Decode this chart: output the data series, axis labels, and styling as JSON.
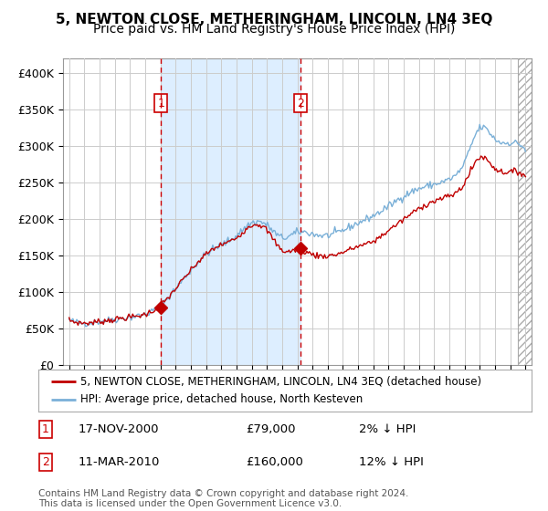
{
  "title": "5, NEWTON CLOSE, METHERINGHAM, LINCOLN, LN4 3EQ",
  "subtitle": "Price paid vs. HM Land Registry's House Price Index (HPI)",
  "ylabel_ticks": [
    "£0",
    "£50K",
    "£100K",
    "£150K",
    "£200K",
    "£250K",
    "£300K",
    "£350K",
    "£400K"
  ],
  "ytick_values": [
    0,
    50000,
    100000,
    150000,
    200000,
    250000,
    300000,
    350000,
    400000
  ],
  "ylim": [
    0,
    420000
  ],
  "xlim_start": 1994.6,
  "xlim_end": 2025.4,
  "hpi_color": "#7ab0d8",
  "price_color": "#c00000",
  "vline_color": "#cc0000",
  "shade_color": "#ddeeff",
  "transaction1": {
    "date_num": 2001.05,
    "price": 79000,
    "label": "1"
  },
  "transaction2": {
    "date_num": 2010.19,
    "price": 160000,
    "label": "2"
  },
  "legend_line1": "5, NEWTON CLOSE, METHERINGHAM, LINCOLN, LN4 3EQ (detached house)",
  "legend_line2": "HPI: Average price, detached house, North Kesteven",
  "table_row1": [
    "1",
    "17-NOV-2000",
    "£79,000",
    "2% ↓ HPI"
  ],
  "table_row2": [
    "2",
    "11-MAR-2010",
    "£160,000",
    "12% ↓ HPI"
  ],
  "footnote": "Contains HM Land Registry data © Crown copyright and database right 2024.\nThis data is licensed under the Open Government Licence v3.0.",
  "title_fontsize": 11,
  "subtitle_fontsize": 10,
  "tick_fontsize": 9,
  "background_color": "#ffffff",
  "hpi_anchor_years": [
    1995,
    1996,
    1997,
    1998,
    1999,
    2000,
    2001,
    2002,
    2003,
    2004,
    2005,
    2006,
    2007,
    2008,
    2009,
    2010,
    2011,
    2012,
    2013,
    2014,
    2015,
    2016,
    2017,
    2018,
    2019,
    2020,
    2021,
    2022,
    2023,
    2024,
    2025
  ],
  "hpi_anchor_prices": [
    62000,
    58000,
    60000,
    63000,
    66000,
    70000,
    82000,
    105000,
    130000,
    152000,
    165000,
    178000,
    195000,
    192000,
    175000,
    182000,
    180000,
    178000,
    185000,
    195000,
    205000,
    218000,
    232000,
    242000,
    248000,
    255000,
    278000,
    325000,
    310000,
    305000,
    295000
  ],
  "price_anchor_years": [
    1995,
    1996,
    1997,
    1998,
    1999,
    2000,
    2001,
    2002,
    2003,
    2004,
    2005,
    2006,
    2007,
    2008,
    2009,
    2010,
    2011,
    2012,
    2013,
    2014,
    2015,
    2016,
    2017,
    2018,
    2019,
    2020,
    2021,
    2022,
    2023,
    2024,
    2025
  ],
  "price_anchor_prices": [
    62000,
    58000,
    60000,
    63000,
    66000,
    70000,
    82000,
    105000,
    130000,
    152000,
    165000,
    175000,
    192000,
    185000,
    158000,
    158000,
    152000,
    150000,
    155000,
    163000,
    170000,
    185000,
    200000,
    215000,
    225000,
    232000,
    250000,
    285000,
    270000,
    265000,
    260000
  ]
}
